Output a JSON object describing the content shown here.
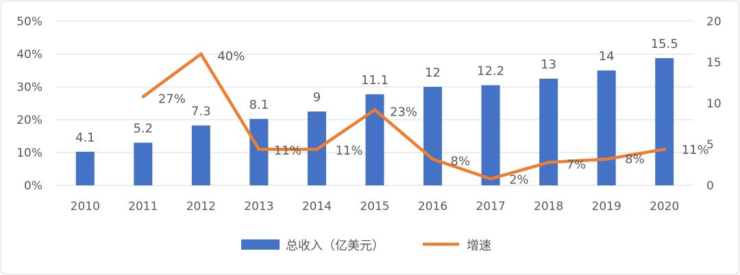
{
  "chart_data": {
    "type": "bar",
    "categories": [
      "2010",
      "2011",
      "2012",
      "2013",
      "2014",
      "2015",
      "2016",
      "2017",
      "2018",
      "2019",
      "2020"
    ],
    "series": [
      {
        "name": "总收入（亿美元）",
        "type": "bar",
        "axis": "right",
        "values": [
          4.1,
          5.2,
          7.3,
          8.1,
          9,
          11.1,
          12,
          12.2,
          13,
          14,
          15.5
        ],
        "labels": [
          "4.1",
          "5.2",
          "7.3",
          "8.1",
          "9",
          "11.1",
          "12",
          "12.2",
          "13",
          "14",
          "15.5"
        ],
        "color": "#4472c4"
      },
      {
        "name": "增速",
        "type": "line",
        "axis": "left",
        "values": [
          null,
          0.27,
          0.4,
          0.11,
          0.11,
          0.23,
          0.08,
          0.02,
          0.07,
          0.08,
          0.11
        ],
        "labels": [
          "",
          "27%",
          "40%",
          "11%",
          "11%",
          "23%",
          "8%",
          "2%",
          "7%",
          "8%",
          "11%"
        ],
        "color": "#ed7d31"
      }
    ],
    "y_left": {
      "ticks": [
        "0%",
        "10%",
        "20%",
        "30%",
        "40%",
        "50%"
      ],
      "ylim": [
        0,
        0.5
      ]
    },
    "y_right": {
      "ticks": [
        "0",
        "5",
        "10",
        "15",
        "20"
      ],
      "ylim": [
        0,
        20
      ]
    },
    "grid": true,
    "legend_position": "bottom"
  }
}
